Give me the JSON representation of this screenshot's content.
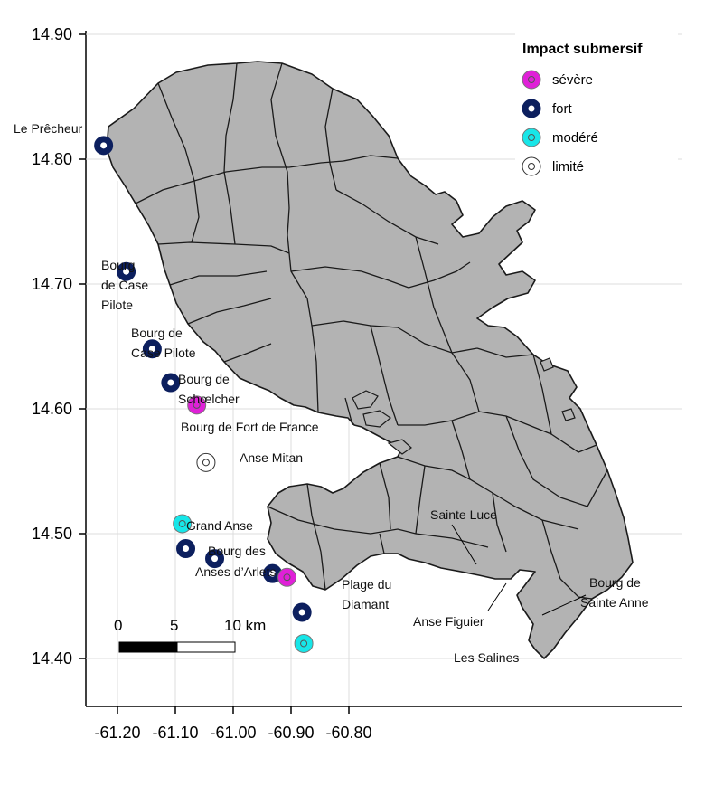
{
  "axes": {
    "x_ticks": [
      "-61.20",
      "-61.10",
      "-61.00",
      "-60.90",
      "-60.80"
    ],
    "y_ticks": [
      "14.90",
      "14.80",
      "14.70",
      "14.60",
      "14.50",
      "14.40"
    ],
    "x_values": [
      -61.2,
      -61.1,
      -61.0,
      -60.9,
      -60.8
    ],
    "y_values": [
      14.9,
      14.8,
      14.7,
      14.6,
      14.5,
      14.4
    ]
  },
  "legend": {
    "title": "Impact submersif",
    "items": [
      {
        "label": "sévère",
        "level": "severe"
      },
      {
        "label": "fort",
        "level": "fort"
      },
      {
        "label": "modéré",
        "level": "modere"
      },
      {
        "label": "limité",
        "level": "limite"
      }
    ]
  },
  "colors": {
    "severe": "#e020d8",
    "fort": "#0c1f5e",
    "modere": "#17e6e8",
    "limite": "#ffffff",
    "land": "#b3b3b3",
    "border": "#1a1a1a"
  },
  "scale_bar": {
    "labels": [
      "0",
      "5",
      "10 km"
    ]
  },
  "sites": [
    {
      "name": "Le Prêcheur",
      "lon": -61.224,
      "lat": 14.811,
      "level": "fort"
    },
    {
      "name": "Bourg de Case Pilote",
      "lon": -61.185,
      "lat": 14.71,
      "level": "fort"
    },
    {
      "name": "Bourg de Case Pilote",
      "lon": -61.14,
      "lat": 14.648,
      "level": "fort"
    },
    {
      "name": "Bourg de Schœlcher",
      "lon": -61.108,
      "lat": 14.621,
      "level": "fort"
    },
    {
      "name": "Bourg de Fort de France",
      "lon": -61.063,
      "lat": 14.603,
      "level": "severe"
    },
    {
      "name": "Anse Mitan",
      "lon": -61.047,
      "lat": 14.557,
      "level": "limite"
    },
    {
      "name": "Grand Anse",
      "lon": -61.088,
      "lat": 14.508,
      "level": "modere"
    },
    {
      "name": "Bourg des Anses d'Arlets",
      "lon": -61.082,
      "lat": 14.488,
      "level": "fort"
    },
    {
      "name": "Plage du Diamant",
      "lon": -61.032,
      "lat": 14.48,
      "level": "fort"
    },
    {
      "name": "Sainte Luce",
      "lon": -60.932,
      "lat": 14.468,
      "level": "fort"
    },
    {
      "name": "Anse Figuier",
      "lon": -60.907,
      "lat": 14.465,
      "level": "severe"
    },
    {
      "name": "Bourg de Sainte Anne",
      "lon": -60.881,
      "lat": 14.437,
      "level": "fort"
    },
    {
      "name": "Les Salines",
      "lon": -60.878,
      "lat": 14.412,
      "level": "modere"
    }
  ],
  "labels": {
    "le_precheur": "Le Prêcheur",
    "case_pilote_1": [
      "Bourg",
      "de Case",
      "Pilote"
    ],
    "case_pilote_2": [
      "Bourg de",
      "Case Pilote"
    ],
    "schoelcher": [
      "Bourg de",
      "Schœlcher"
    ],
    "fort_de_france": "Bourg de Fort de France",
    "anse_mitan": "Anse Mitan",
    "grand_anse": "Grand Anse",
    "anses_arlets": [
      "Bourg des",
      "Anses d’Arlets"
    ],
    "diamant": [
      "Plage du",
      "Diamant"
    ],
    "sainte_luce": "Sainte Luce",
    "anse_figuier": "Anse Figuier",
    "sainte_anne": [
      "Bourg de",
      "Sainte Anne"
    ],
    "les_salines": "Les Salines"
  }
}
